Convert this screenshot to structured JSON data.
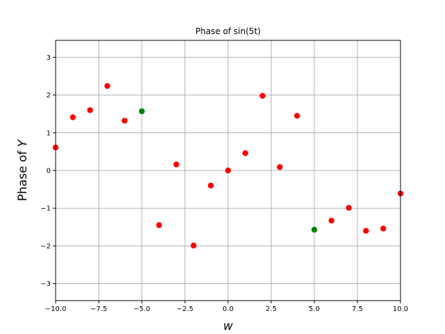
{
  "chart_data": {
    "type": "scatter",
    "title": "Phase of sin(5t)",
    "xlabel": "w",
    "ylabel_prefix": "Phase of ",
    "ylabel_var": "Y",
    "xlim": [
      -10,
      10
    ],
    "ylim": [
      -3.45,
      3.45
    ],
    "xticks": [
      -10,
      -7.5,
      -5,
      -2.5,
      0,
      2.5,
      5,
      7.5,
      10
    ],
    "xtick_labels": [
      "−10.0",
      "−7.5",
      "−5.0",
      "−2.5",
      "0.0",
      "2.5",
      "5.0",
      "7.5",
      "10.0"
    ],
    "yticks": [
      -3,
      -2,
      -1,
      0,
      1,
      2,
      3
    ],
    "ytick_labels": [
      "−3",
      "−2",
      "−1",
      "0",
      "1",
      "2",
      "3"
    ],
    "grid": true,
    "series": [
      {
        "color": "#ff0000",
        "points": [
          [
            -10,
            0.61
          ],
          [
            -9,
            1.41
          ],
          [
            -8,
            1.6
          ],
          [
            -7,
            2.24
          ],
          [
            -6,
            1.32
          ],
          [
            -4,
            -1.45
          ],
          [
            -3,
            0.16
          ],
          [
            -2,
            -1.99
          ],
          [
            -1,
            -0.4
          ],
          [
            0,
            0.0
          ],
          [
            1,
            0.46
          ],
          [
            2,
            1.98
          ],
          [
            3,
            0.09
          ],
          [
            4,
            1.45
          ],
          [
            6,
            -1.33
          ],
          [
            7,
            -0.99
          ],
          [
            8,
            -1.6
          ],
          [
            9,
            -1.54
          ],
          [
            10,
            -0.61
          ]
        ]
      },
      {
        "color": "#008000",
        "points": [
          [
            -5,
            1.57
          ],
          [
            5,
            -1.57
          ]
        ]
      }
    ]
  }
}
